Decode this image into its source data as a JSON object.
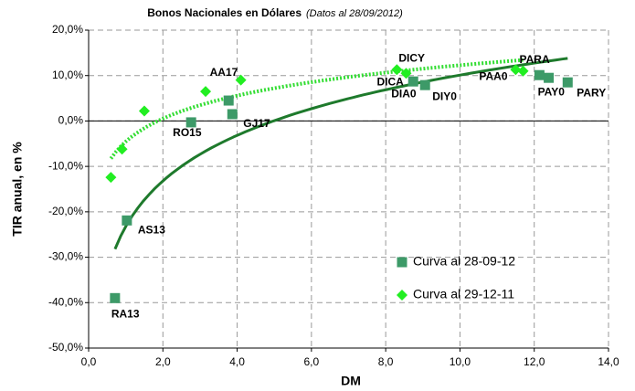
{
  "chart_data": {
    "type": "scatter",
    "title": "Bonos Nacionales en Dólares",
    "subtitle": "(Datos al 28/09/2012)",
    "x_label": "DM",
    "y_label": "TIR anual, en %",
    "xlim": [
      0,
      14
    ],
    "ylim": [
      -50,
      20
    ],
    "xticks": [
      {
        "value": 0,
        "label": "0,0"
      },
      {
        "value": 2,
        "label": "2,0"
      },
      {
        "value": 4,
        "label": "4,0"
      },
      {
        "value": 6,
        "label": "6,0"
      },
      {
        "value": 8,
        "label": "8,0"
      },
      {
        "value": 10,
        "label": "10,0"
      },
      {
        "value": 12,
        "label": "12,0"
      },
      {
        "value": 14,
        "label": "14,0"
      }
    ],
    "yticks": [
      {
        "value": -50,
        "label": "-50,0%"
      },
      {
        "value": -40,
        "label": "-40,0%"
      },
      {
        "value": -30,
        "label": "-30,0%"
      },
      {
        "value": -20,
        "label": "-20,0%"
      },
      {
        "value": -10,
        "label": "-10,0%"
      },
      {
        "value": 0,
        "label": "0,0%"
      },
      {
        "value": 10,
        "label": "10,0%"
      },
      {
        "value": 20,
        "label": "20,0%"
      }
    ],
    "grid": true,
    "legend": "lower-right",
    "series": [
      {
        "name": "Curva al 28-09-12",
        "color": "#3d9a68",
        "marker": "square",
        "trendline": "logarithmic",
        "trend_color": "#1e7a2c",
        "trend_style": "solid",
        "x": [
          0.71,
          1.03,
          2.76,
          3.77,
          3.87,
          8.74,
          9.06,
          12.14,
          12.39,
          12.9
        ],
        "values": [
          -39,
          -21.9,
          -0.3,
          4.5,
          1.5,
          8.7,
          7.9,
          10.1,
          9.5,
          8.5
        ],
        "labels": [
          "RA13",
          "AS13",
          "RO15",
          null,
          "GJ17",
          "DIA0",
          "DIY0",
          null,
          "PAY0",
          "PARY"
        ]
      },
      {
        "name": "Curva al 29-12-11",
        "color": "#22ee22",
        "marker": "diamond",
        "trendline": "logarithmic",
        "trend_color": "#33dd33",
        "trend_style": "dotted",
        "x": [
          0.6,
          0.9,
          1.5,
          3.15,
          4.1,
          8.3,
          8.55,
          11.5,
          11.7
        ],
        "values": [
          -12.4,
          -6.2,
          2.2,
          6.5,
          9,
          11.3,
          10.5,
          11.3,
          11
        ],
        "labels": [
          null,
          null,
          null,
          null,
          "AA17",
          "DICY",
          "DICA",
          "PAA0",
          "PARA"
        ]
      }
    ]
  }
}
